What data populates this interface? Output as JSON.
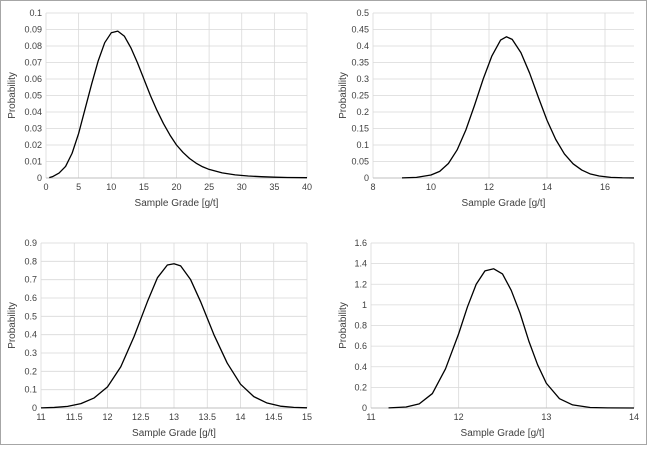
{
  "chart_data": [
    {
      "type": "line",
      "title": "",
      "xlabel": "Sample Grade [g/t]",
      "ylabel": "Probability",
      "xlim": [
        0,
        40
      ],
      "ylim": [
        0,
        0.1
      ],
      "grid": true,
      "xticks": [
        "0",
        "5",
        "10",
        "15",
        "20",
        "25",
        "30",
        "35",
        "40"
      ],
      "yticks": [
        "0",
        "0.01",
        "0.02",
        "0.03",
        "0.04",
        "0.05",
        "0.06",
        "0.07",
        "0.08",
        "0.09",
        "0.1"
      ],
      "series": [
        {
          "name": "",
          "x": [
            0.5,
            1,
            2,
            3,
            4,
            5,
            6,
            7,
            8,
            9,
            10,
            11,
            12,
            13,
            14,
            15,
            16,
            17,
            18,
            19,
            20,
            21,
            22,
            23,
            24,
            25,
            27,
            29,
            31,
            33,
            35,
            37,
            40
          ],
          "y": [
            0.0002,
            0.0008,
            0.003,
            0.007,
            0.015,
            0.027,
            0.042,
            0.057,
            0.071,
            0.082,
            0.088,
            0.089,
            0.086,
            0.079,
            0.07,
            0.06,
            0.05,
            0.041,
            0.033,
            0.026,
            0.02,
            0.0155,
            0.0118,
            0.009,
            0.0068,
            0.0052,
            0.0031,
            0.0019,
            0.0012,
            0.0008,
            0.0005,
            0.0003,
            0.0002
          ]
        }
      ]
    },
    {
      "type": "line",
      "title": "",
      "xlabel": "Sample Grade [g/t]",
      "ylabel": "Probability",
      "xlim": [
        8,
        17
      ],
      "ylim": [
        0,
        0.5
      ],
      "grid": true,
      "xticks": [
        "8",
        "10",
        "12",
        "14",
        "16"
      ],
      "yticks": [
        "0",
        "0.05",
        "0.1",
        "0.15",
        "0.2",
        "0.25",
        "0.3",
        "0.35",
        "0.4",
        "0.45",
        "0.5"
      ],
      "series": [
        {
          "name": "",
          "x": [
            9,
            9.5,
            10,
            10.3,
            10.6,
            10.9,
            11.2,
            11.5,
            11.8,
            12.1,
            12.4,
            12.6,
            12.8,
            13.1,
            13.4,
            13.7,
            14,
            14.3,
            14.6,
            14.9,
            15.2,
            15.5,
            15.8,
            16.2,
            16.6,
            17
          ],
          "y": [
            0.0005,
            0.002,
            0.009,
            0.02,
            0.044,
            0.085,
            0.145,
            0.22,
            0.3,
            0.37,
            0.418,
            0.428,
            0.42,
            0.38,
            0.318,
            0.245,
            0.175,
            0.117,
            0.073,
            0.043,
            0.024,
            0.012,
            0.006,
            0.002,
            0.0007,
            0.0002
          ]
        }
      ]
    },
    {
      "type": "line",
      "title": "",
      "xlabel": "Sample Grade [g/t]",
      "ylabel": "Probability",
      "xlim": [
        11,
        15
      ],
      "ylim": [
        0,
        0.9
      ],
      "grid": true,
      "xticks": [
        "11",
        "11.5",
        "12",
        "12.5",
        "13",
        "13.5",
        "14",
        "14.5",
        "15"
      ],
      "yticks": [
        "0",
        "0.1",
        "0.2",
        "0.3",
        "0.4",
        "0.5",
        "0.6",
        "0.7",
        "0.8",
        "0.9"
      ],
      "series": [
        {
          "name": "",
          "x": [
            11,
            11.2,
            11.4,
            11.6,
            11.8,
            12,
            12.2,
            12.4,
            12.6,
            12.75,
            12.9,
            13,
            13.1,
            13.25,
            13.4,
            13.6,
            13.8,
            14,
            14.2,
            14.4,
            14.6,
            14.8,
            15
          ],
          "y": [
            0.0008,
            0.003,
            0.009,
            0.024,
            0.055,
            0.115,
            0.225,
            0.39,
            0.58,
            0.71,
            0.78,
            0.787,
            0.775,
            0.7,
            0.58,
            0.4,
            0.245,
            0.13,
            0.062,
            0.027,
            0.01,
            0.0035,
            0.001
          ]
        }
      ]
    },
    {
      "type": "line",
      "title": "",
      "xlabel": "Sample Grade [g/t]",
      "ylabel": "Probability",
      "xlim": [
        11,
        14
      ],
      "ylim": [
        0,
        1.6
      ],
      "grid": true,
      "xticks": [
        "11",
        "12",
        "13",
        "14"
      ],
      "yticks": [
        "0",
        "0.2",
        "0.4",
        "0.6",
        "0.8",
        "1",
        "1.2",
        "1.4",
        "1.6"
      ],
      "series": [
        {
          "name": "",
          "x": [
            11.2,
            11.4,
            11.55,
            11.7,
            11.85,
            12,
            12.1,
            12.2,
            12.3,
            12.4,
            12.5,
            12.6,
            12.7,
            12.8,
            12.9,
            13,
            13.15,
            13.3,
            13.5,
            13.7,
            14
          ],
          "y": [
            0.001,
            0.01,
            0.04,
            0.14,
            0.38,
            0.72,
            0.98,
            1.2,
            1.33,
            1.35,
            1.3,
            1.14,
            0.92,
            0.65,
            0.42,
            0.24,
            0.09,
            0.03,
            0.005,
            0.001,
            0.0002
          ]
        }
      ]
    }
  ]
}
